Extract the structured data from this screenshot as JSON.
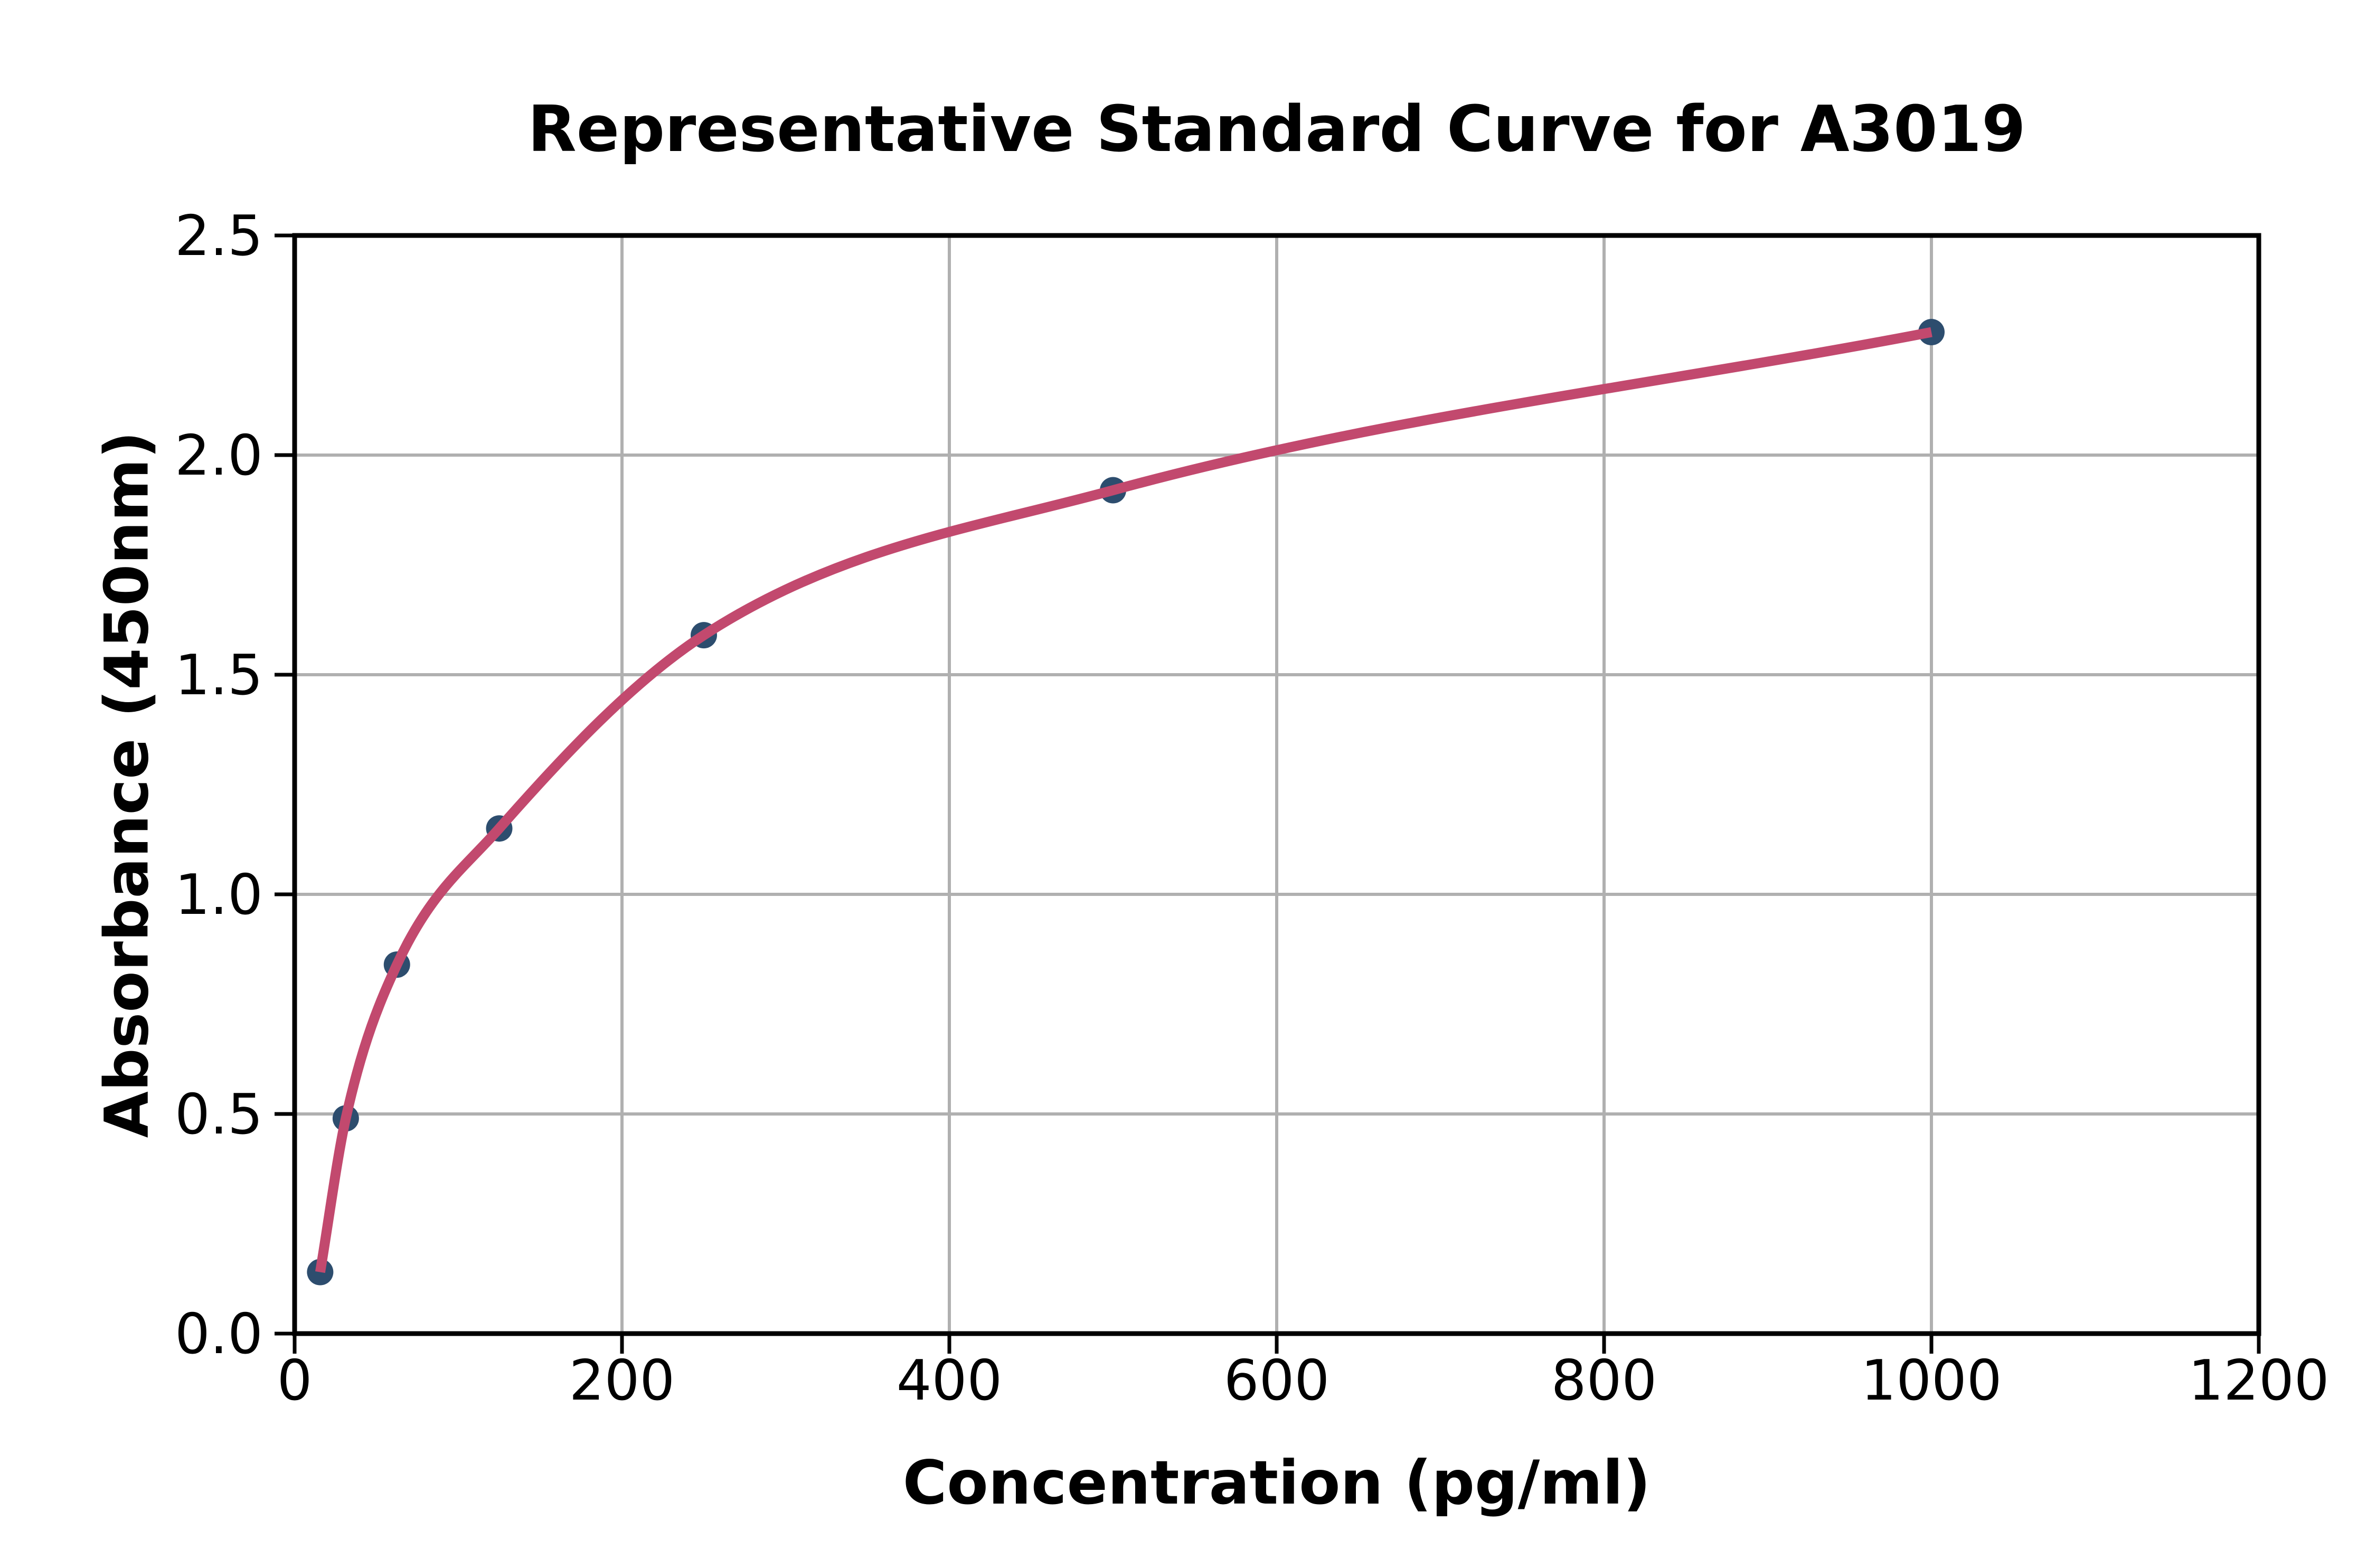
{
  "chart_data": {
    "type": "scatter",
    "title": "Representative Standard Curve for A3019",
    "xlabel": "Concentration (pg/ml)",
    "ylabel": "Absorbance (450nm)",
    "x": [
      15.6,
      31.25,
      62.5,
      125,
      250,
      500,
      1000
    ],
    "y": [
      0.14,
      0.49,
      0.84,
      1.15,
      1.59,
      1.92,
      2.28
    ],
    "fitted_curve_through_points": true,
    "xlim": [
      0,
      1200
    ],
    "ylim": [
      0,
      2.5
    ],
    "xtick_values": [
      0,
      200,
      400,
      600,
      800,
      1000,
      1200
    ],
    "xtick_labels": [
      "0",
      "200",
      "400",
      "600",
      "800",
      "1000",
      "1200"
    ],
    "ytick_values": [
      0,
      0.5,
      1.0,
      1.5,
      2.0,
      2.5
    ],
    "ytick_labels": [
      "0.0",
      "0.5",
      "1.0",
      "1.5",
      "2.0",
      "2.5"
    ],
    "grid": true,
    "legend": "none",
    "colors": {
      "marker": "#2d4d6e",
      "curve": "#c2496e",
      "grid": "#b0b0b0",
      "axis": "#000000",
      "text": "#000000"
    }
  }
}
